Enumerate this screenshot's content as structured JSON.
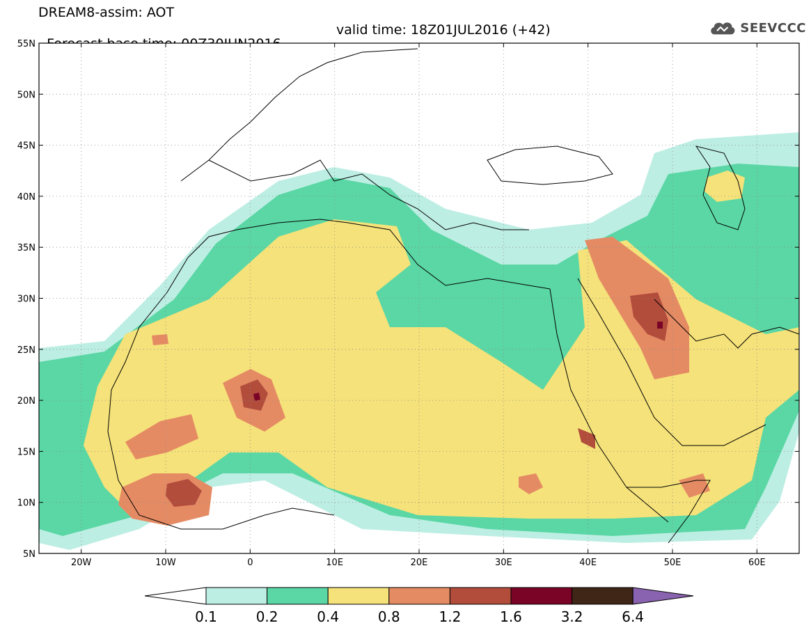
{
  "title": {
    "line1": "DREAM8-assim: AOT",
    "line2_base": "Forecast base time: 00Z30JUN2016",
    "line2_valid": "valid time: 18Z01JUL2016 (+42)"
  },
  "logo": {
    "icon": "cloud-icon",
    "text": "SEEVCCC"
  },
  "map": {
    "lon_range": [
      -25,
      65
    ],
    "lat_range": [
      5,
      55
    ],
    "lat_ticks": [
      {
        "lat": 55,
        "label": "55N"
      },
      {
        "lat": 50,
        "label": "50N"
      },
      {
        "lat": 45,
        "label": "45N"
      },
      {
        "lat": 40,
        "label": "40N"
      },
      {
        "lat": 35,
        "label": "35N"
      },
      {
        "lat": 30,
        "label": "30N"
      },
      {
        "lat": 25,
        "label": "25N"
      },
      {
        "lat": 20,
        "label": "20N"
      },
      {
        "lat": 15,
        "label": "15N"
      },
      {
        "lat": 10,
        "label": "10N"
      },
      {
        "lat": 5,
        "label": "5N"
      }
    ],
    "lon_ticks": [
      {
        "lon": -20,
        "label": "20W"
      },
      {
        "lon": -10,
        "label": "10W"
      },
      {
        "lon": 0,
        "label": "0"
      },
      {
        "lon": 10,
        "label": "10E"
      },
      {
        "lon": 20,
        "label": "20E"
      },
      {
        "lon": 30,
        "label": "30E"
      },
      {
        "lon": 40,
        "label": "40E"
      },
      {
        "lon": 50,
        "label": "50E"
      },
      {
        "lon": 60,
        "label": "60E"
      }
    ],
    "grid": true
  },
  "legend": {
    "labels": [
      "0.1",
      "0.2",
      "0.4",
      "0.8",
      "1.2",
      "1.6",
      "3.2",
      "6.4"
    ],
    "colors": [
      "#ffffff",
      "#bdeee3",
      "#5ad7a5",
      "#f5e27a",
      "#e58b64",
      "#b24d3c",
      "#7a0426",
      "#3f2616",
      "#8a63b0"
    ]
  }
}
